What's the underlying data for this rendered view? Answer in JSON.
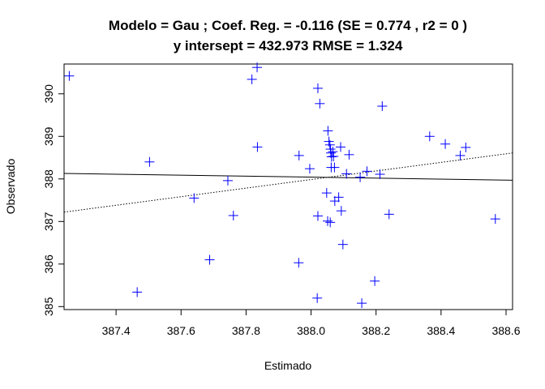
{
  "chart_data": {
    "type": "scatter",
    "title_line1": "Modelo =  Gau ; Coef. Reg. =  -0.116  (SE =  0.774 , r2 =  0 )",
    "title_line2": "y intersept =  432.973 RMSE =  1.324",
    "xlabel": "Estimado",
    "ylabel": "Observado",
    "xlim": [
      387.24,
      388.62
    ],
    "ylim": [
      384.93,
      390.7
    ],
    "x_ticks": [
      387.4,
      387.6,
      387.8,
      388.0,
      388.2,
      388.4,
      388.6
    ],
    "x_tick_labels": [
      "387.4",
      "387.6",
      "387.8",
      "388.0",
      "388.2",
      "388.4",
      "388.6"
    ],
    "y_ticks": [
      385,
      386,
      387,
      388,
      389,
      390
    ],
    "y_tick_labels": [
      "385",
      "386",
      "387",
      "388",
      "389",
      "390"
    ],
    "grid": false,
    "point_color": "#0000FF",
    "point_marker": "plus",
    "points": [
      [
        387.256,
        390.42
      ],
      [
        387.503,
        388.4
      ],
      [
        387.465,
        385.34
      ],
      [
        387.64,
        387.55
      ],
      [
        387.688,
        386.1
      ],
      [
        387.744,
        387.96
      ],
      [
        387.761,
        387.14
      ],
      [
        387.818,
        390.34
      ],
      [
        387.834,
        390.62
      ],
      [
        387.835,
        388.75
      ],
      [
        387.962,
        386.03
      ],
      [
        387.963,
        388.55
      ],
      [
        387.996,
        388.24
      ],
      [
        388.019,
        385.2
      ],
      [
        388.021,
        390.13
      ],
      [
        388.021,
        387.13
      ],
      [
        388.027,
        389.77
      ],
      [
        388.048,
        387.67
      ],
      [
        388.051,
        387.01
      ],
      [
        388.052,
        389.13
      ],
      [
        388.055,
        388.88
      ],
      [
        388.058,
        388.8
      ],
      [
        388.059,
        386.98
      ],
      [
        388.06,
        388.7
      ],
      [
        388.061,
        388.61
      ],
      [
        388.062,
        388.27
      ],
      [
        388.063,
        388.52
      ],
      [
        388.067,
        388.64
      ],
      [
        388.069,
        388.53
      ],
      [
        388.072,
        388.27
      ],
      [
        388.073,
        387.48
      ],
      [
        388.085,
        387.57
      ],
      [
        388.091,
        388.75
      ],
      [
        388.093,
        387.25
      ],
      [
        388.098,
        386.46
      ],
      [
        388.109,
        388.12
      ],
      [
        388.117,
        388.57
      ],
      [
        388.151,
        388.04
      ],
      [
        388.156,
        385.08
      ],
      [
        388.172,
        388.18
      ],
      [
        388.196,
        385.6
      ],
      [
        388.212,
        388.11
      ],
      [
        388.219,
        389.71
      ],
      [
        388.24,
        387.17
      ],
      [
        388.365,
        389.0
      ],
      [
        388.413,
        388.82
      ],
      [
        388.459,
        388.55
      ],
      [
        388.476,
        388.74
      ],
      [
        388.567,
        387.06
      ]
    ],
    "lines": [
      {
        "style": "solid",
        "color": "#000000",
        "x": [
          387.24,
          388.62
        ],
        "y": [
          388.13,
          387.97
        ]
      },
      {
        "style": "dotted",
        "color": "#000000",
        "x": [
          387.24,
          388.62
        ],
        "y": [
          387.22,
          388.61
        ]
      }
    ]
  }
}
